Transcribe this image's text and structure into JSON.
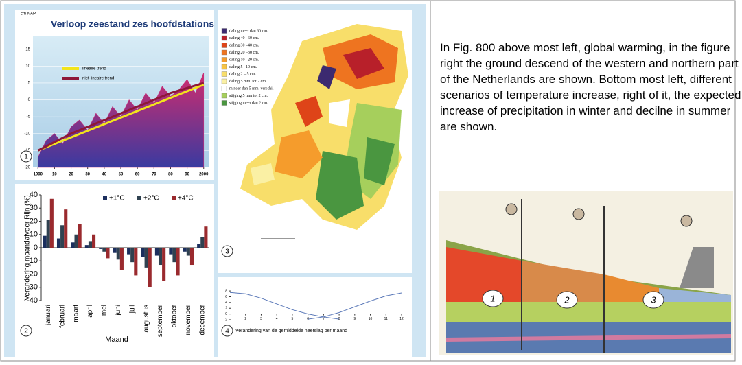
{
  "figure": {
    "panel1": {
      "type": "line",
      "title": "Verloop zeestand zes hoofdstations",
      "y_unit": "cm NAP",
      "number": "1",
      "xlim": [
        1897,
        2003
      ],
      "ylim": [
        -20,
        19
      ],
      "xticks": [
        1900,
        {
          "value": 1910,
          "label": "10"
        },
        {
          "value": 1920,
          "label": "20"
        },
        {
          "value": 1930,
          "label": "30"
        },
        {
          "value": 1940,
          "label": "40"
        },
        {
          "value": 1950,
          "label": "50"
        },
        {
          "value": 1960,
          "label": "60"
        },
        {
          "value": 1970,
          "label": "70"
        },
        {
          "value": 1980,
          "label": "80"
        },
        {
          "value": 1990,
          "label": "90"
        },
        2000
      ],
      "yticks": [
        -20,
        -15,
        -10,
        -5,
        0,
        5,
        10,
        15
      ],
      "yearly": {
        "color": "#c8307a",
        "x": [
          1900,
          1905,
          1910,
          1915,
          1920,
          1925,
          1930,
          1935,
          1940,
          1945,
          1950,
          1955,
          1960,
          1965,
          1970,
          1975,
          1980,
          1985,
          1990,
          1995,
          2000
        ],
        "values": [
          -17,
          -12,
          -10,
          -13,
          -8,
          -6,
          -9,
          -4,
          -7,
          -2,
          -5,
          0,
          -3,
          2,
          -1,
          4,
          1,
          3,
          6,
          2,
          8
        ]
      },
      "series": [
        {
          "name": "lineaire trend",
          "color": "#f2e41c",
          "x": [
            1900,
            2000
          ],
          "values": [
            -15,
            4.5
          ]
        },
        {
          "name": "niet-lineaire trend",
          "color": "#8e1838",
          "x": [
            1900,
            1920,
            1940,
            1960,
            1980,
            2000
          ],
          "values": [
            -15,
            -10,
            -6,
            -2,
            2,
            5
          ]
        }
      ]
    },
    "panel2": {
      "type": "bar",
      "number": "2",
      "y_label": "Verandering maandafvoer Rijn (%)",
      "x_label": "Maand",
      "categories": [
        "januari",
        "februari",
        "maart",
        "april",
        "mei",
        "juni",
        "juli",
        "augustus",
        "september",
        "oktober",
        "november",
        "december"
      ],
      "ylim": [
        -40,
        40
      ],
      "yticks": [
        -40,
        -30,
        -20,
        -10,
        0,
        10,
        20,
        30,
        40
      ],
      "series": [
        {
          "name": "+1°C",
          "color": "#1c2f5e",
          "values": [
            9,
            7,
            4,
            2,
            -1,
            -4,
            -5,
            -7,
            -6,
            -5,
            -3,
            3
          ]
        },
        {
          "name": "+2°C",
          "color": "#2f4150",
          "values": [
            21,
            17,
            10,
            5,
            -3,
            -9,
            -11,
            -15,
            -13,
            -11,
            -6,
            8
          ]
        },
        {
          "name": "+4°C",
          "color": "#9a2a2e",
          "values": [
            37,
            29,
            18,
            10,
            -8,
            -17,
            -21,
            -30,
            -25,
            -21,
            -13,
            16
          ]
        }
      ]
    },
    "panel3": {
      "number": "3",
      "legend": [
        {
          "label": "daling meer dan 60 cm.",
          "color": "#3c2a70"
        },
        {
          "label": "daling 40 –60 cm.",
          "color": "#b8202a"
        },
        {
          "label": "daling 30 –40 cm.",
          "color": "#de4418"
        },
        {
          "label": "daling 20 –30 cm.",
          "color": "#ee7420"
        },
        {
          "label": "daling 10 –20 cm.",
          "color": "#f59c2c"
        },
        {
          "label": "daling  5 –10 cm.",
          "color": "#f7c444"
        },
        {
          "label": "daling  2 – 5 cm.",
          "color": "#f8de6a"
        },
        {
          "label": "daling  5 mm. tot 2 cm",
          "color": "#faf0a4"
        },
        {
          "label": "minder dan 5 mm. verschil",
          "color": "#ffffff"
        },
        {
          "label": "stijging 5 mm tot 2 cm.",
          "color": "#a6cf5c"
        },
        {
          "label": "stijging meer dan 2 cm.",
          "color": "#4a9640"
        }
      ]
    },
    "panel4": {
      "type": "line",
      "number": "4",
      "caption": "Verandering van de gemiddelde neerslag per maand",
      "xlim": [
        1,
        12
      ],
      "ylim": [
        -2,
        8.5
      ],
      "xticks": [
        2,
        3,
        4,
        5,
        6,
        7,
        8,
        9,
        10,
        11,
        12
      ],
      "yticks": [
        -2,
        0,
        2,
        4,
        6,
        8
      ],
      "series": [
        {
          "color": "#5a78b8",
          "x": [
            1,
            2,
            3,
            4,
            5,
            6,
            7,
            8
          ],
          "values": [
            7.5,
            7,
            5.5,
            3.5,
            1.5,
            0,
            -1,
            -1.8
          ]
        },
        {
          "color": "#5a78b8",
          "x": [
            6,
            7,
            8,
            9,
            10,
            11,
            12
          ],
          "values": [
            -1.8,
            -1,
            0.5,
            2.5,
            4.5,
            6.3,
            7.3
          ]
        }
      ]
    }
  },
  "text": "In Fig. 800  above most left, global warming, in the figure right the ground descend of the western and northern part of the Netherlands are shown. Bottom most left, different scenarios of temperature increase, right of it, the expected increase of precipitation in winter and decilne in summer are shown.",
  "illustration": {
    "labels": [
      "1",
      "2",
      "3"
    ]
  }
}
